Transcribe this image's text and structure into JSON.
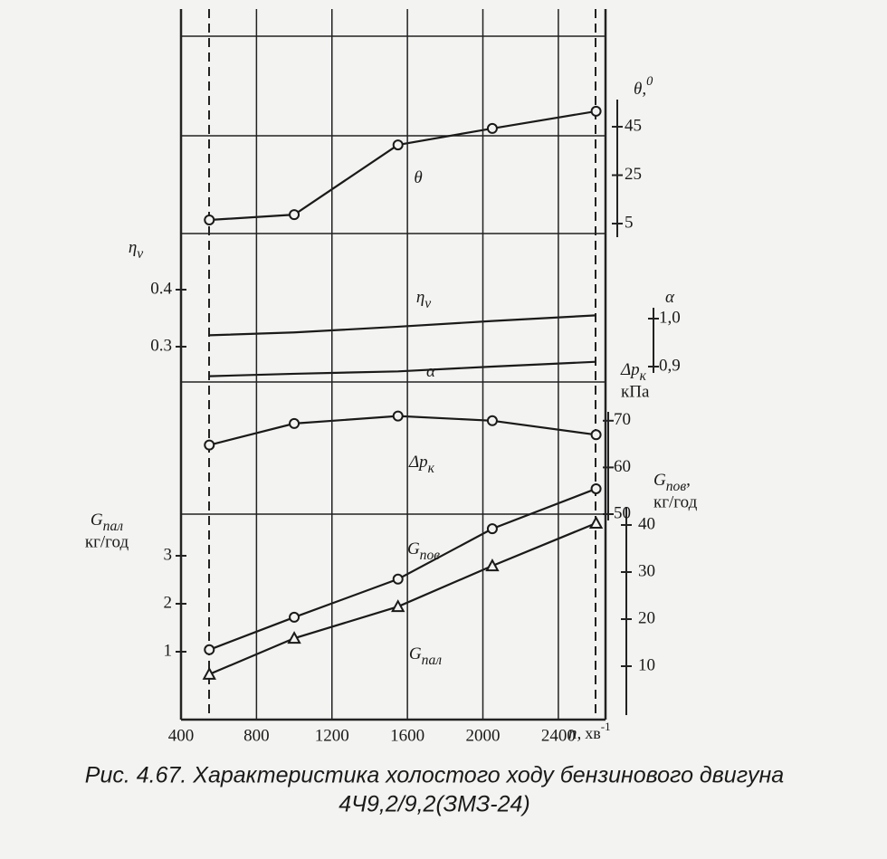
{
  "caption": [
    "Рис. 4.67. Характеристика холостого ходу бензинового двигуна",
    "4Ч9,2/9,2(ЗМЗ-24)"
  ],
  "chart_data": [
    {
      "type": "line",
      "axis_side": "right",
      "marker": "circle",
      "label": {
        "text": "θ,",
        "sup": "0"
      },
      "curve_label": {
        "text": "θ"
      },
      "x": [
        550,
        1000,
        1550,
        2050,
        2600
      ],
      "values": [
        6.5,
        8.7,
        37.5,
        44.3,
        51.4
      ],
      "xlim": [
        400,
        2650
      ],
      "ylim": [
        0,
        60
      ],
      "yticks": [
        5,
        25,
        45
      ]
    },
    {
      "type": "line",
      "axis_side": "left",
      "marker": "none",
      "label": {
        "text": "η",
        "sub": "v"
      },
      "curve_label": {
        "text": "η",
        "sub": "v"
      },
      "x": [
        550,
        1000,
        1550,
        2050,
        2600
      ],
      "values": [
        0.32,
        0.325,
        0.335,
        0.345,
        0.355
      ],
      "xlim": [
        400,
        2650
      ],
      "ylim": [
        0.25,
        0.45
      ],
      "yticks": [
        0.3,
        0.4
      ]
    },
    {
      "type": "line",
      "axis_side": "right",
      "marker": "none",
      "label": {
        "text": "α"
      },
      "curve_label": {
        "text": "α"
      },
      "x": [
        550,
        1000,
        1550,
        2050,
        2600
      ],
      "values": [
        0.88,
        0.885,
        0.89,
        0.9,
        0.91
      ],
      "xlim": [
        400,
        2650
      ],
      "ylim": [
        0.85,
        1.05
      ],
      "yticks": [
        {
          "value": 0.9,
          "label": "0,9"
        },
        {
          "value": 1.0,
          "label": "1,0"
        }
      ]
    },
    {
      "type": "line",
      "axis_side": "right",
      "marker": "circle",
      "label": {
        "text": "Δp",
        "sub": "к"
      },
      "unit": "кПа",
      "curve_label": {
        "text": "Δp",
        "sub": "к"
      },
      "x": [
        550,
        1000,
        1550,
        2050,
        2600
      ],
      "values": [
        64.8,
        69.4,
        71,
        70,
        67
      ],
      "xlim": [
        400,
        2650
      ],
      "ylim": [
        50,
        75
      ],
      "yticks": [
        50,
        60,
        70
      ]
    },
    {
      "type": "line",
      "axis_side": "right",
      "marker": "circle",
      "label": {
        "text": "G",
        "sub": "пов",
        "tail": ","
      },
      "unit": "кг/год",
      "curve_label": {
        "text": "G",
        "sub": "пов"
      },
      "x": [
        550,
        1000,
        1550,
        2050,
        2600
      ],
      "values": [
        13.5,
        20.4,
        28.5,
        39.2,
        47.7
      ],
      "xlim": [
        400,
        2650
      ],
      "ylim": [
        0,
        60
      ],
      "yticks": [
        10,
        20,
        30,
        40
      ]
    },
    {
      "type": "line",
      "axis_side": "left",
      "marker": "triangle",
      "label": {
        "text": "G",
        "sub": "пал"
      },
      "unit": "кг/год",
      "curve_label": {
        "text": "G",
        "sub": "пал"
      },
      "x": [
        550,
        1000,
        1550,
        2050,
        2600
      ],
      "values": [
        0.53,
        1.28,
        1.94,
        2.79,
        3.68
      ],
      "xlim": [
        400,
        2650
      ],
      "ylim": [
        0,
        5
      ],
      "yticks": [
        1,
        2,
        3
      ],
      "xticks": [
        400,
        800,
        1200,
        1600,
        2000,
        2400
      ],
      "x_label": {
        "text": "n,",
        "unit": "хв",
        "sup": "-1"
      }
    }
  ]
}
